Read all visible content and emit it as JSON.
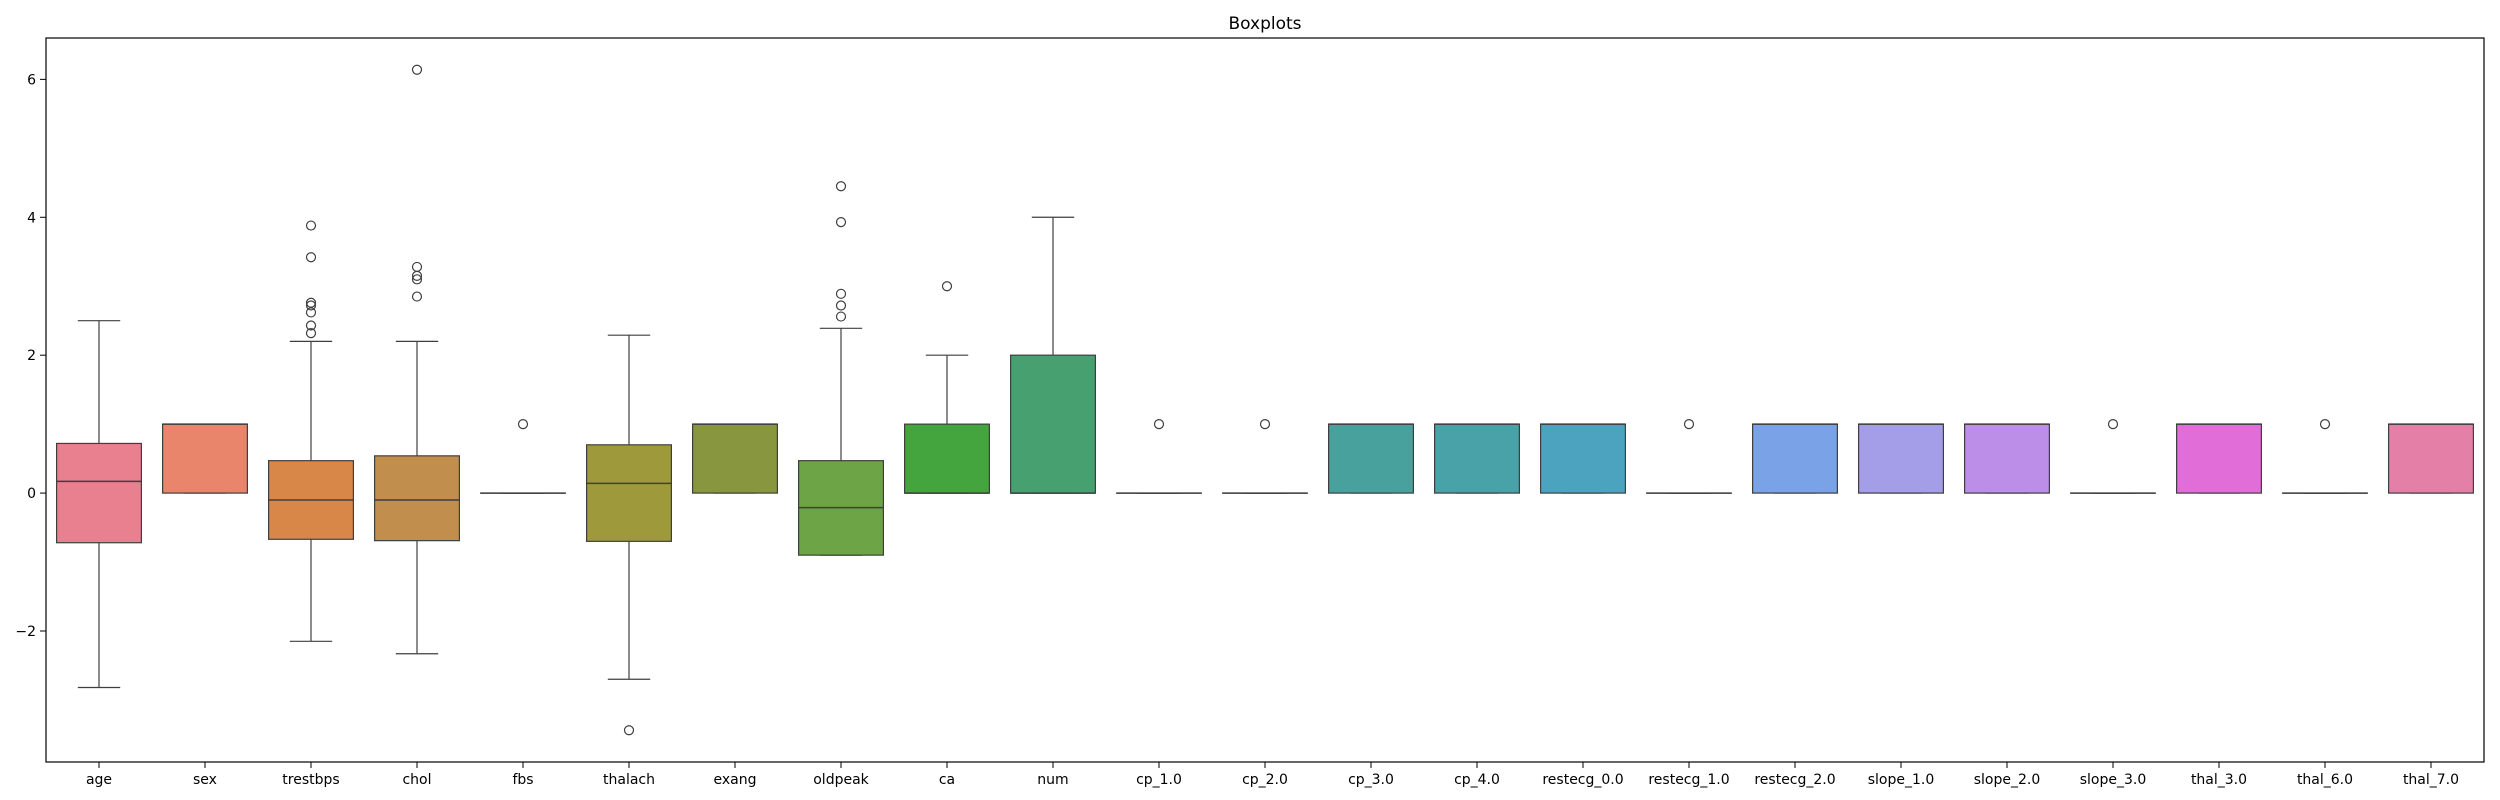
{
  "chart_data": {
    "type": "box",
    "title": "Boxplots",
    "xlabel": "",
    "ylabel": "",
    "ylim": [
      -3.9,
      6.6
    ],
    "yticks": [
      -2,
      0,
      2,
      4,
      6
    ],
    "ytick_labels": [
      "−2",
      "0",
      "2",
      "4",
      "6"
    ],
    "grid": false,
    "categories": [
      "age",
      "sex",
      "trestbps",
      "chol",
      "fbs",
      "thalach",
      "exang",
      "oldpeak",
      "ca",
      "num",
      "cp_1.0",
      "cp_2.0",
      "cp_3.0",
      "cp_4.0",
      "restecg_0.0",
      "restecg_1.0",
      "restecg_2.0",
      "slope_1.0",
      "slope_2.0",
      "slope_3.0",
      "thal_3.0",
      "thal_6.0",
      "thal_7.0"
    ],
    "boxes": [
      {
        "name": "age",
        "color": "#e8808f",
        "whislo": -2.82,
        "q1": -0.72,
        "med": 0.17,
        "q3": 0.72,
        "whishi": 2.5,
        "fliers": []
      },
      {
        "name": "sex",
        "color": "#e8856b",
        "whislo": 0,
        "q1": 0,
        "med": 1,
        "q3": 1,
        "whishi": 1,
        "fliers": []
      },
      {
        "name": "trestbps",
        "color": "#d88748",
        "whislo": -2.15,
        "q1": -0.67,
        "med": -0.1,
        "q3": 0.47,
        "whishi": 2.2,
        "fliers": [
          2.32,
          2.43,
          2.62,
          2.72,
          2.76,
          3.42,
          3.88
        ]
      },
      {
        "name": "chol",
        "color": "#c28e4e",
        "whislo": -2.33,
        "q1": -0.69,
        "med": -0.1,
        "q3": 0.54,
        "whishi": 2.2,
        "fliers": [
          2.85,
          3.1,
          3.15,
          3.28,
          6.14
        ]
      },
      {
        "name": "fbs",
        "color": "#ab9a47",
        "whislo": 0,
        "q1": 0,
        "med": 0,
        "q3": 0,
        "whishi": 0,
        "fliers": [
          1
        ]
      },
      {
        "name": "thalach",
        "color": "#9e9a3c",
        "whislo": -2.7,
        "q1": -0.7,
        "med": 0.14,
        "q3": 0.7,
        "whishi": 2.29,
        "fliers": [
          -3.44
        ]
      },
      {
        "name": "exang",
        "color": "#889640",
        "whislo": 0,
        "q1": 0,
        "med": 1,
        "q3": 1,
        "whishi": 1,
        "fliers": []
      },
      {
        "name": "oldpeak",
        "color": "#6da445",
        "whislo": -0.9,
        "q1": -0.9,
        "med": -0.21,
        "q3": 0.47,
        "whishi": 2.39,
        "fliers": [
          2.56,
          2.72,
          2.89,
          3.93,
          4.45
        ]
      },
      {
        "name": "ca",
        "color": "#44a43e",
        "whislo": 0,
        "q1": 0,
        "med": 0,
        "q3": 1,
        "whishi": 2,
        "fliers": [
          3
        ]
      },
      {
        "name": "num",
        "color": "#46a06f",
        "whislo": 0,
        "q1": 0,
        "med": 0,
        "q3": 2,
        "whishi": 4,
        "fliers": []
      },
      {
        "name": "cp_1.0",
        "color": "#47a38a",
        "whislo": 0,
        "q1": 0,
        "med": 0,
        "q3": 0,
        "whishi": 0,
        "fliers": [
          1
        ]
      },
      {
        "name": "cp_2.0",
        "color": "#47a495",
        "whislo": 0,
        "q1": 0,
        "med": 0,
        "q3": 0,
        "whishi": 0,
        "fliers": [
          1
        ]
      },
      {
        "name": "cp_3.0",
        "color": "#48a19c",
        "whislo": 0,
        "q1": 0,
        "med": 1,
        "q3": 1,
        "whishi": 1,
        "fliers": []
      },
      {
        "name": "cp_4.0",
        "color": "#48a2a8",
        "whislo": 0,
        "q1": 0,
        "med": 1,
        "q3": 1,
        "whishi": 1,
        "fliers": []
      },
      {
        "name": "restecg_0.0",
        "color": "#4ca3c0",
        "whislo": 0,
        "q1": 0,
        "med": 1,
        "q3": 1,
        "whishi": 1,
        "fliers": []
      },
      {
        "name": "restecg_1.0",
        "color": "#5aa6d4",
        "whislo": 0,
        "q1": 0,
        "med": 0,
        "q3": 0,
        "whishi": 0,
        "fliers": [
          1
        ]
      },
      {
        "name": "restecg_2.0",
        "color": "#7aa2e6",
        "whislo": 0,
        "q1": 0,
        "med": 1,
        "q3": 1,
        "whishi": 1,
        "fliers": []
      },
      {
        "name": "slope_1.0",
        "color": "#a49ee8",
        "whislo": 0,
        "q1": 0,
        "med": 1,
        "q3": 1,
        "whishi": 1,
        "fliers": []
      },
      {
        "name": "slope_2.0",
        "color": "#bc8ee8",
        "whislo": 0,
        "q1": 0,
        "med": 1,
        "q3": 1,
        "whishi": 1,
        "fliers": []
      },
      {
        "name": "slope_3.0",
        "color": "#cf84e2",
        "whislo": 0,
        "q1": 0,
        "med": 0,
        "q3": 0,
        "whishi": 0,
        "fliers": [
          1
        ]
      },
      {
        "name": "thal_3.0",
        "color": "#e06dd8",
        "whislo": 0,
        "q1": 0,
        "med": 1,
        "q3": 1,
        "whishi": 1,
        "fliers": []
      },
      {
        "name": "thal_6.0",
        "color": "#e27cc0",
        "whislo": 0,
        "q1": 0,
        "med": 0,
        "q3": 0,
        "whishi": 0,
        "fliers": [
          1
        ]
      },
      {
        "name": "thal_7.0",
        "color": "#e480a8",
        "whislo": 0,
        "q1": 0,
        "med": 1,
        "q3": 1,
        "whishi": 1,
        "fliers": []
      }
    ]
  }
}
